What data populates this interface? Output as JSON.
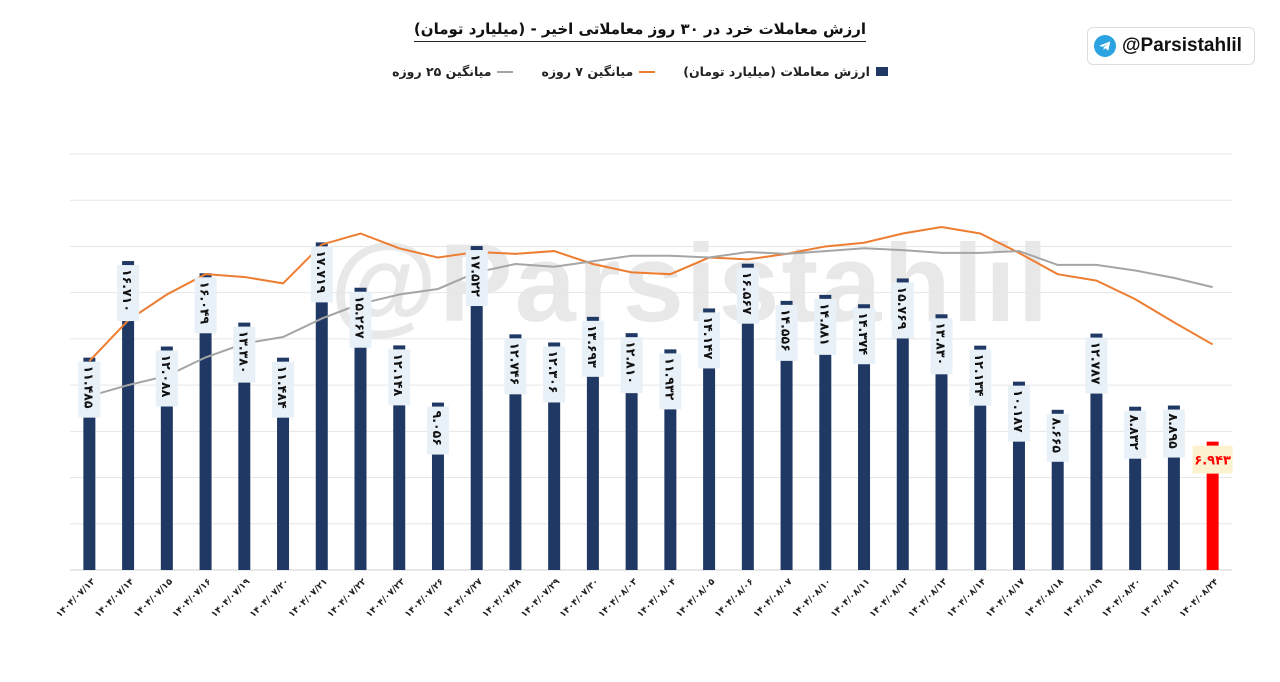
{
  "chart_data": {
    "type": "bar",
    "title": "ارزش معاملات خرد در ۳۰ روز معاملاتی اخیر - (میلیارد تومان)",
    "xlabel": "",
    "ylabel": "",
    "ylim": [
      0,
      22.5
    ],
    "grid": true,
    "legend_placement": "top-center",
    "legend": [
      "ارزش معاملات (میلیارد تومان)",
      "میانگین ۷ روزه",
      "میانگین ۲۵ روزه"
    ],
    "categories": [
      "۱۴۰۴/۰۷/۱۳",
      "۱۴۰۴/۰۷/۱۴",
      "۱۴۰۴/۰۷/۱۵",
      "۱۴۰۴/۰۷/۱۶",
      "۱۴۰۴/۰۷/۱۹",
      "۱۴۰۴/۰۷/۲۰",
      "۱۴۰۴/۰۷/۲۱",
      "۱۴۰۴/۰۷/۲۲",
      "۱۴۰۴/۰۷/۲۳",
      "۱۴۰۴/۰۷/۲۶",
      "۱۴۰۴/۰۷/۲۷",
      "۱۴۰۴/۰۷/۲۸",
      "۱۴۰۴/۰۷/۲۹",
      "۱۴۰۴/۰۷/۳۰",
      "۱۴۰۴/۰۸/۰۳",
      "۱۴۰۴/۰۸/۰۴",
      "۱۴۰۴/۰۸/۰۵",
      "۱۴۰۴/۰۸/۰۶",
      "۱۴۰۴/۰۸/۰۷",
      "۱۴۰۴/۰۸/۱۰",
      "۱۴۰۴/۰۸/۱۱",
      "۱۴۰۴/۰۸/۱۲",
      "۱۴۰۴/۰۸/۱۳",
      "۱۴۰۴/۰۸/۱۴",
      "۱۴۰۴/۰۸/۱۷",
      "۱۴۰۴/۰۸/۱۸",
      "۱۴۰۴/۰۸/۱۹",
      "۱۴۰۴/۰۸/۲۰",
      "۱۴۰۴/۰۸/۲۱",
      "۱۴۰۴/۰۸/۲۴"
    ],
    "series": [
      {
        "name": "ارزش معاملات (میلیارد تومان)",
        "kind": "bar",
        "color": "#1f3864",
        "highlight_last_color": "#ff0000",
        "values": [
          11.485,
          16.71,
          12.088,
          16.049,
          13.38,
          11.484,
          17.719,
          15.267,
          12.148,
          9.056,
          17.522,
          12.746,
          12.306,
          13.693,
          12.81,
          11.932,
          14.147,
          16.567,
          14.556,
          14.881,
          14.374,
          15.769,
          13.83,
          12.134,
          10.187,
          8.665,
          12.787,
          8.832,
          8.895,
          6.943
        ],
        "labels": [
          "۱۱.۴۸۵",
          "۱۶.۷۱۰",
          "۱۲.۰۸۸",
          "۱۶.۰۴۹",
          "۱۳.۳۸۰",
          "۱۱.۴۸۴",
          "۱۷.۷۱۹",
          "۱۵.۲۶۷",
          "۱۲.۱۴۸",
          "۹.۰۵۶",
          "۱۷.۵۲۲",
          "۱۲.۷۴۶",
          "۱۲.۳۰۶",
          "۱۳.۶۹۳",
          "۱۲.۸۱۰",
          "۱۱.۹۳۲",
          "۱۴.۱۴۷",
          "۱۶.۵۶۷",
          "۱۴.۵۵۶",
          "۱۴.۸۸۱",
          "۱۴.۳۷۴",
          "۱۵.۷۶۹",
          "۱۳.۸۳۰",
          "۱۲.۱۳۴",
          "۱۰.۱۸۷",
          "۸.۶۶۵",
          "۱۲.۷۸۷",
          "۸.۸۳۲",
          "۸.۸۹۵",
          "۶.۹۴۳"
        ]
      },
      {
        "name": "میانگین ۷ روزه",
        "kind": "line",
        "color": "#ed7d31",
        "values": [
          11.3,
          13.5,
          14.9,
          16.0,
          15.85,
          15.5,
          17.6,
          18.2,
          17.4,
          16.9,
          17.2,
          17.1,
          17.25,
          16.55,
          16.1,
          16.0,
          16.9,
          16.8,
          17.1,
          17.5,
          17.7,
          18.2,
          18.55,
          18.2,
          17.15,
          16.0,
          15.65,
          14.65,
          13.4,
          12.2
        ]
      },
      {
        "name": "میانگین ۲۵ روزه",
        "kind": "line",
        "color": "#a5a5a5",
        "values": [
          9.4,
          10.0,
          10.5,
          11.5,
          12.25,
          12.6,
          13.6,
          14.4,
          14.9,
          15.2,
          16.1,
          16.55,
          16.4,
          16.7,
          17.0,
          17.0,
          16.9,
          17.2,
          17.1,
          17.25,
          17.4,
          17.3,
          17.15,
          17.15,
          17.25,
          16.5,
          16.5,
          16.2,
          15.8,
          15.3
        ]
      }
    ]
  },
  "header": {
    "title": "ارزش معاملات خرد در ۳۰ روز معاملاتی اخیر - (میلیارد تومان)",
    "legend": {
      "bar": "ارزش معاملات (میلیارد تومان)",
      "ma7": "میانگین ۷ روزه",
      "ma25": "میانگین ۲۵ روزه"
    }
  },
  "badge": {
    "handle": "@Parsistahlil",
    "icon": "telegram-icon"
  },
  "watermark": "@Parsistahlil"
}
